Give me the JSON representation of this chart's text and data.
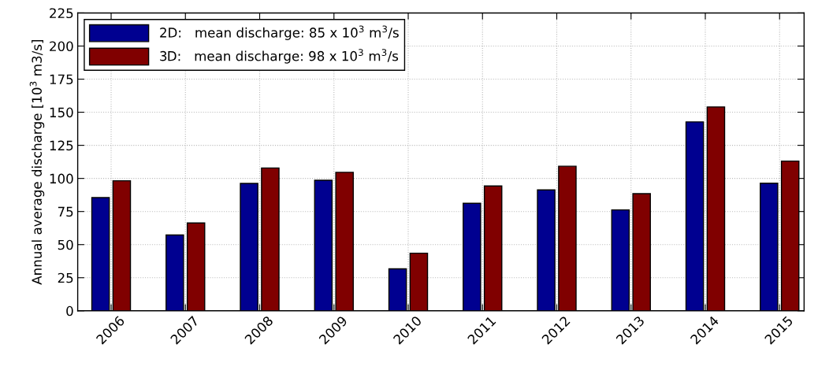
{
  "chart_data": {
    "type": "bar",
    "categories": [
      "2006",
      "2007",
      "2008",
      "2009",
      "2010",
      "2011",
      "2012",
      "2013",
      "2014",
      "2015"
    ],
    "ylabel": "Annual average discharge [10$^{3}$ m3/s]",
    "series": [
      {
        "name": "2D:   mean discharge: 85 x 10$^{3}$ m$^{3}$/s",
        "color": "#000090",
        "values": [
          85.5,
          57.3,
          96.2,
          98.6,
          31.7,
          81.2,
          91.3,
          76.2,
          142.7,
          96.4
        ]
      },
      {
        "name": "3D:   mean discharge: 98 x 10$^{3}$ m$^{3}$/s",
        "color": "#800000",
        "values": [
          98.2,
          66.3,
          107.9,
          104.6,
          43.5,
          94.3,
          109.2,
          88.5,
          154.0,
          113.1
        ]
      }
    ],
    "ylim": [
      0,
      225
    ],
    "yticks": [
      0,
      25,
      50,
      75,
      100,
      125,
      150,
      175,
      200,
      225
    ],
    "grid": true,
    "legend": "top left",
    "line_style": "dotted"
  }
}
